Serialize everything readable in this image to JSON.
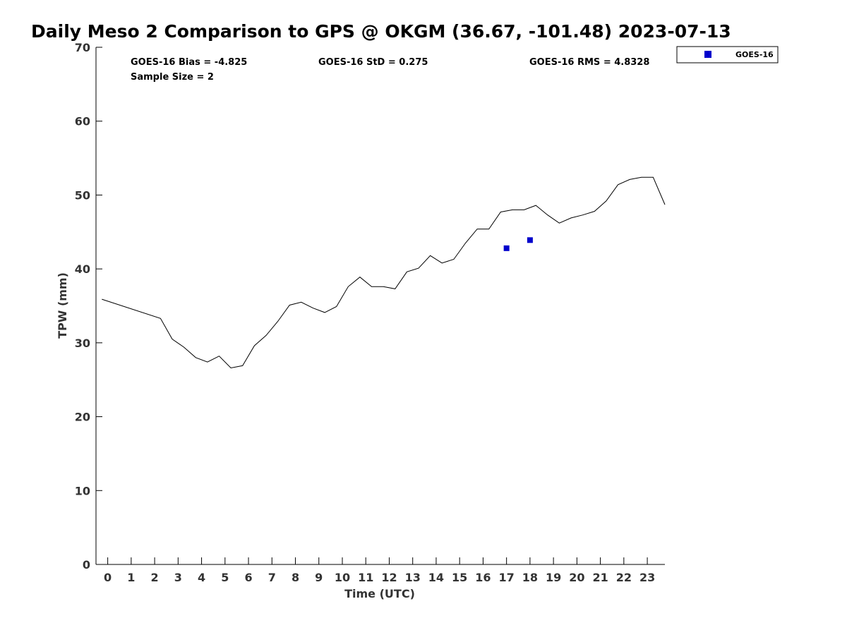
{
  "chart_data": {
    "type": "line",
    "title": "Daily Meso 2 Comparison to GPS @ OKGM (36.67, -101.48) 2023-07-13",
    "xlabel": "Time (UTC)",
    "ylabel": "TPW (mm)",
    "xlim": [
      -0.5,
      23.75
    ],
    "ylim": [
      0,
      70
    ],
    "x_ticks": [
      0,
      1,
      2,
      3,
      4,
      5,
      6,
      7,
      8,
      9,
      10,
      11,
      12,
      13,
      14,
      15,
      16,
      17,
      18,
      19,
      20,
      21,
      22,
      23
    ],
    "y_ticks": [
      0,
      10,
      20,
      30,
      40,
      50,
      60,
      70
    ],
    "grid": false,
    "legend_position": "top-right",
    "stats": {
      "bias": "GOES-16 Bias = -4.825",
      "std": "GOES-16 StD = 0.275",
      "rms": "GOES-16 RMS = 4.8328",
      "sample_size": "Sample Size = 2"
    },
    "series": [
      {
        "type": "line",
        "color": "#000000",
        "x": [
          -0.25,
          2.25,
          2.75,
          3.25,
          3.75,
          4.25,
          4.75,
          5.25,
          5.75,
          6.25,
          6.75,
          7.25,
          7.75,
          8.25,
          8.75,
          9.25,
          9.75,
          10.25,
          10.75,
          11.25,
          11.75,
          12.25,
          12.75,
          13.25,
          13.75,
          14.25,
          14.75,
          15.25,
          15.75,
          16.25,
          16.75,
          17.25,
          17.75,
          18.25,
          18.75,
          19.25,
          19.75,
          20.25,
          20.75,
          21.25,
          21.75,
          22.25,
          22.75,
          23.25,
          23.75
        ],
        "y": [
          35.9,
          33.3,
          30.5,
          29.4,
          28.0,
          27.4,
          28.2,
          26.6,
          26.9,
          29.6,
          31.0,
          32.9,
          35.1,
          35.5,
          34.7,
          34.1,
          34.9,
          37.6,
          38.9,
          37.6,
          37.6,
          37.3,
          39.6,
          40.1,
          41.8,
          40.8,
          41.3,
          43.5,
          45.4,
          45.4,
          47.7,
          48.0,
          48.0,
          48.6,
          47.3,
          46.2,
          46.9,
          47.3,
          47.8,
          49.2,
          51.4,
          52.1,
          52.4,
          52.4,
          48.7
        ]
      },
      {
        "name": "GOES-16",
        "type": "scatter",
        "color": "#0000cc",
        "marker": "square",
        "x": [
          17.0,
          18.0
        ],
        "y": [
          42.8,
          43.9
        ]
      }
    ]
  }
}
